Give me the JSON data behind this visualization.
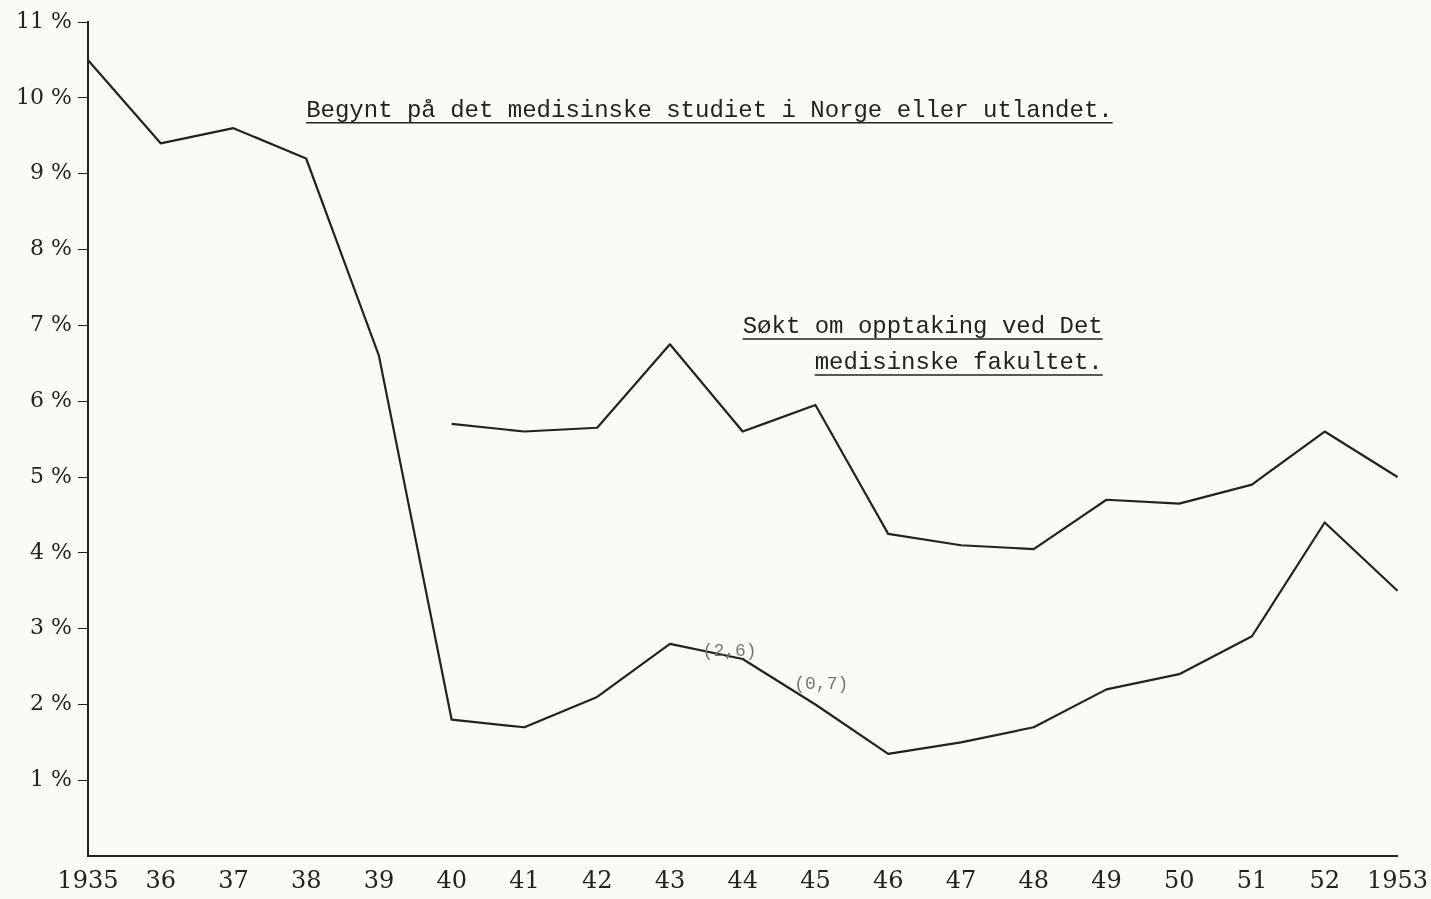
{
  "chart_data": {
    "type": "line",
    "categories": [
      "1935",
      "36",
      "37",
      "38",
      "39",
      "40",
      "41",
      "42",
      "43",
      "44",
      "45",
      "46",
      "47",
      "48",
      "49",
      "50",
      "51",
      "52",
      "1953"
    ],
    "series": [
      {
        "name": "Begynt på det medisinske studiet i Norge eller utlandet.",
        "color": "#222222",
        "values": [
          10.5,
          9.4,
          9.6,
          9.2,
          6.6,
          1.8,
          1.7,
          2.1,
          2.8,
          2.6,
          2.0,
          1.35,
          1.5,
          1.7,
          2.2,
          2.4,
          2.9,
          4.4,
          3.5
        ]
      },
      {
        "name": "Søkt om opptaking ved Det medisinske fakultet.",
        "color": "#222222",
        "values": [
          null,
          null,
          null,
          null,
          null,
          5.7,
          5.6,
          5.65,
          6.75,
          5.6,
          5.95,
          4.25,
          4.1,
          4.05,
          4.7,
          4.65,
          4.9,
          5.6,
          5.0
        ]
      }
    ],
    "ylim": [
      0,
      11
    ],
    "yticks": [
      {
        "value": 1,
        "label": "1 %"
      },
      {
        "value": 2,
        "label": "2 %"
      },
      {
        "value": 3,
        "label": "3 %"
      },
      {
        "value": 4,
        "label": "4 %"
      },
      {
        "value": 5,
        "label": "5 %"
      },
      {
        "value": 6,
        "label": "6 %"
      },
      {
        "value": 7,
        "label": "7 %"
      },
      {
        "value": 8,
        "label": "8 %"
      },
      {
        "value": 9,
        "label": "9 %"
      },
      {
        "value": 10,
        "label": "10 %"
      },
      {
        "value": 11,
        "label": "11 %"
      }
    ],
    "annotations": [
      "(2,6)",
      "(0,7)"
    ],
    "grid": false,
    "legend": false,
    "marker": "none",
    "line_style": "solid"
  }
}
